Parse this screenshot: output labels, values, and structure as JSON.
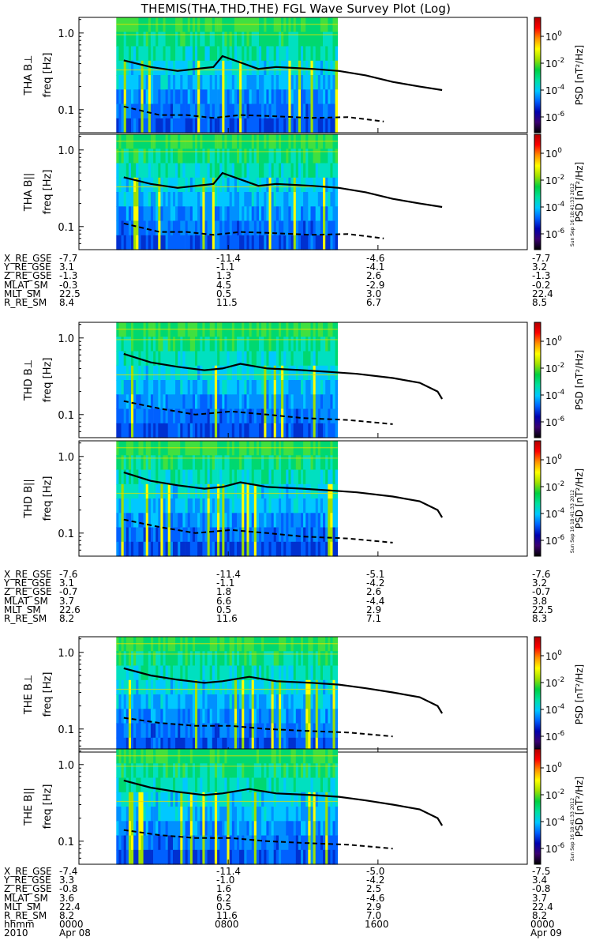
{
  "title": "THEMIS(THA,THD,THE) FGL Wave Survey Plot (Log)",
  "colors": {
    "colorbar": [
      "#000000",
      "#3a0070",
      "#0000b0",
      "#0060ff",
      "#00c8ff",
      "#00e0a0",
      "#00d040",
      "#9fe000",
      "#ffff00",
      "#ff9000",
      "#ff0000",
      "#b00000"
    ]
  },
  "common": {
    "ylabel_freq": "freq [Hz]",
    "colorbar_label": "PSD [nT²/Hz]",
    "yticks": [
      "1.0",
      "0.1"
    ],
    "cb_ticks": [
      {
        "base": "10",
        "exp": "0"
      },
      {
        "base": "10",
        "exp": "-2"
      },
      {
        "base": "10",
        "exp": "-4"
      },
      {
        "base": "10",
        "exp": "-6"
      }
    ],
    "stamp": "Sun Sep 16 18:41:33 2012"
  },
  "chart_data": [
    {
      "type": "heatmap",
      "probe": "THA",
      "component": "THA B⊥",
      "ylabel": "freq [Hz]",
      "ylim": [
        0.05,
        1.6
      ],
      "yscale": "log",
      "xlim": [
        "2010-04-08 00:00",
        "2010-04-09 00:00"
      ],
      "data_until": "2010-04-08 13:45",
      "colorbar": {
        "label": "PSD [nT²/Hz]",
        "range": [
          "1e-7",
          "1e1"
        ],
        "scale": "log"
      },
      "overlay_solid": [
        [
          0.1,
          0.44
        ],
        [
          0.16,
          0.36
        ],
        [
          0.22,
          0.32
        ],
        [
          0.3,
          0.36
        ],
        [
          0.32,
          0.5
        ],
        [
          0.4,
          0.34
        ],
        [
          0.44,
          0.36
        ],
        [
          0.52,
          0.34
        ],
        [
          0.58,
          0.32
        ],
        [
          0.64,
          0.28
        ],
        [
          0.7,
          0.23
        ],
        [
          0.76,
          0.2
        ],
        [
          0.81,
          0.18
        ]
      ],
      "overlay_dashed": [
        [
          0.1,
          0.11
        ],
        [
          0.18,
          0.085
        ],
        [
          0.24,
          0.085
        ],
        [
          0.3,
          0.078
        ],
        [
          0.36,
          0.085
        ],
        [
          0.44,
          0.082
        ],
        [
          0.52,
          0.078
        ],
        [
          0.6,
          0.08
        ],
        [
          0.68,
          0.07
        ]
      ]
    },
    {
      "type": "heatmap",
      "probe": "THA",
      "component": "THA B||",
      "ylabel": "freq [Hz]",
      "ylim": [
        0.05,
        1.6
      ],
      "yscale": "log",
      "xlim": [
        "2010-04-08 00:00",
        "2010-04-09 00:00"
      ],
      "data_until": "2010-04-08 13:45",
      "colorbar": {
        "label": "PSD [nT²/Hz]",
        "range": [
          "1e-7",
          "1e1"
        ],
        "scale": "log"
      },
      "overlay_solid": [
        [
          0.1,
          0.44
        ],
        [
          0.16,
          0.36
        ],
        [
          0.22,
          0.32
        ],
        [
          0.3,
          0.36
        ],
        [
          0.32,
          0.5
        ],
        [
          0.4,
          0.34
        ],
        [
          0.44,
          0.36
        ],
        [
          0.52,
          0.34
        ],
        [
          0.58,
          0.32
        ],
        [
          0.64,
          0.28
        ],
        [
          0.7,
          0.23
        ],
        [
          0.76,
          0.2
        ],
        [
          0.81,
          0.18
        ]
      ],
      "overlay_dashed": [
        [
          0.1,
          0.11
        ],
        [
          0.18,
          0.085
        ],
        [
          0.24,
          0.085
        ],
        [
          0.3,
          0.078
        ],
        [
          0.36,
          0.085
        ],
        [
          0.44,
          0.082
        ],
        [
          0.52,
          0.078
        ],
        [
          0.6,
          0.08
        ],
        [
          0.68,
          0.07
        ]
      ]
    },
    {
      "type": "heatmap",
      "probe": "THD",
      "component": "THD B⊥",
      "ylabel": "freq [Hz]",
      "ylim": [
        0.05,
        1.6
      ],
      "yscale": "log",
      "xlim": [
        "2010-04-08 00:00",
        "2010-04-09 00:00"
      ],
      "data_until": "2010-04-08 13:45",
      "colorbar": {
        "label": "PSD [nT²/Hz]",
        "range": [
          "1e-7",
          "1e1"
        ],
        "scale": "log"
      },
      "overlay_solid": [
        [
          0.1,
          0.62
        ],
        [
          0.16,
          0.48
        ],
        [
          0.22,
          0.42
        ],
        [
          0.28,
          0.38
        ],
        [
          0.32,
          0.4
        ],
        [
          0.36,
          0.46
        ],
        [
          0.42,
          0.4
        ],
        [
          0.5,
          0.38
        ],
        [
          0.56,
          0.36
        ],
        [
          0.62,
          0.34
        ],
        [
          0.7,
          0.3
        ],
        [
          0.76,
          0.26
        ],
        [
          0.8,
          0.2
        ],
        [
          0.81,
          0.16
        ]
      ],
      "overlay_dashed": [
        [
          0.1,
          0.15
        ],
        [
          0.18,
          0.12
        ],
        [
          0.26,
          0.1
        ],
        [
          0.34,
          0.11
        ],
        [
          0.42,
          0.1
        ],
        [
          0.5,
          0.09
        ],
        [
          0.6,
          0.085
        ],
        [
          0.7,
          0.075
        ]
      ]
    },
    {
      "type": "heatmap",
      "probe": "THD",
      "component": "THD B||",
      "ylabel": "freq [Hz]",
      "ylim": [
        0.05,
        1.6
      ],
      "yscale": "log",
      "xlim": [
        "2010-04-08 00:00",
        "2010-04-09 00:00"
      ],
      "data_until": "2010-04-08 13:45",
      "colorbar": {
        "label": "PSD [nT²/Hz]",
        "range": [
          "1e-7",
          "1e1"
        ],
        "scale": "log"
      },
      "overlay_solid": [
        [
          0.1,
          0.62
        ],
        [
          0.16,
          0.48
        ],
        [
          0.22,
          0.42
        ],
        [
          0.28,
          0.38
        ],
        [
          0.32,
          0.4
        ],
        [
          0.36,
          0.46
        ],
        [
          0.42,
          0.4
        ],
        [
          0.5,
          0.38
        ],
        [
          0.56,
          0.36
        ],
        [
          0.62,
          0.34
        ],
        [
          0.7,
          0.3
        ],
        [
          0.76,
          0.26
        ],
        [
          0.8,
          0.2
        ],
        [
          0.81,
          0.16
        ]
      ],
      "overlay_dashed": [
        [
          0.1,
          0.15
        ],
        [
          0.18,
          0.12
        ],
        [
          0.26,
          0.1
        ],
        [
          0.34,
          0.11
        ],
        [
          0.42,
          0.1
        ],
        [
          0.5,
          0.09
        ],
        [
          0.6,
          0.085
        ],
        [
          0.7,
          0.075
        ]
      ]
    },
    {
      "type": "heatmap",
      "probe": "THE",
      "component": "THE B⊥",
      "ylabel": "freq [Hz]",
      "ylim": [
        0.05,
        1.6
      ],
      "yscale": "log",
      "xlim": [
        "2010-04-08 00:00",
        "2010-04-09 00:00"
      ],
      "data_until": "2010-04-08 13:45",
      "colorbar": {
        "label": "PSD [nT²/Hz]",
        "range": [
          "1e-7",
          "1e1"
        ],
        "scale": "log"
      },
      "overlay_solid": [
        [
          0.1,
          0.62
        ],
        [
          0.16,
          0.5
        ],
        [
          0.22,
          0.44
        ],
        [
          0.28,
          0.4
        ],
        [
          0.32,
          0.42
        ],
        [
          0.38,
          0.48
        ],
        [
          0.44,
          0.42
        ],
        [
          0.52,
          0.4
        ],
        [
          0.58,
          0.38
        ],
        [
          0.64,
          0.34
        ],
        [
          0.7,
          0.3
        ],
        [
          0.76,
          0.26
        ],
        [
          0.8,
          0.2
        ],
        [
          0.81,
          0.16
        ]
      ],
      "overlay_dashed": [
        [
          0.1,
          0.14
        ],
        [
          0.18,
          0.12
        ],
        [
          0.26,
          0.11
        ],
        [
          0.34,
          0.11
        ],
        [
          0.42,
          0.1
        ],
        [
          0.5,
          0.095
        ],
        [
          0.6,
          0.09
        ],
        [
          0.7,
          0.08
        ]
      ]
    },
    {
      "type": "heatmap",
      "probe": "THE",
      "component": "THE B||",
      "ylabel": "freq [Hz]",
      "ylim": [
        0.05,
        1.6
      ],
      "yscale": "log",
      "xlim": [
        "2010-04-08 00:00",
        "2010-04-09 00:00"
      ],
      "data_until": "2010-04-08 13:45",
      "colorbar": {
        "label": "PSD [nT²/Hz]",
        "range": [
          "1e-7",
          "1e1"
        ],
        "scale": "log"
      },
      "overlay_solid": [
        [
          0.1,
          0.62
        ],
        [
          0.16,
          0.5
        ],
        [
          0.22,
          0.44
        ],
        [
          0.28,
          0.4
        ],
        [
          0.32,
          0.42
        ],
        [
          0.38,
          0.48
        ],
        [
          0.44,
          0.42
        ],
        [
          0.52,
          0.4
        ],
        [
          0.58,
          0.38
        ],
        [
          0.64,
          0.34
        ],
        [
          0.7,
          0.3
        ],
        [
          0.76,
          0.26
        ],
        [
          0.8,
          0.2
        ],
        [
          0.81,
          0.16
        ]
      ],
      "overlay_dashed": [
        [
          0.1,
          0.14
        ],
        [
          0.18,
          0.12
        ],
        [
          0.26,
          0.11
        ],
        [
          0.34,
          0.11
        ],
        [
          0.42,
          0.1
        ],
        [
          0.5,
          0.095
        ],
        [
          0.6,
          0.09
        ],
        [
          0.7,
          0.08
        ]
      ]
    }
  ],
  "ephemeris": [
    {
      "probe": "THA",
      "rows": [
        {
          "label": "X_RE_GSE",
          "v": [
            "-7.7",
            "-11.4",
            "-4.6",
            "-7.7"
          ]
        },
        {
          "label": "Y_RE_GSE",
          "v": [
            "3.1",
            "-1.1",
            "-4.1",
            "3.2"
          ]
        },
        {
          "label": "Z_RE_GSE",
          "v": [
            "-1.3",
            "1.3",
            "2.6",
            "-1.3"
          ]
        },
        {
          "label": "MLAT_SM",
          "v": [
            "-0.3",
            "4.5",
            "-2.9",
            "-0.2"
          ]
        },
        {
          "label": "MLT_SM",
          "v": [
            "22.5",
            "0.5",
            "3.0",
            "22.4"
          ]
        },
        {
          "label": "R_RE_SM",
          "v": [
            "8.4",
            "11.5",
            "6.7",
            "8.5"
          ]
        }
      ]
    },
    {
      "probe": "THD",
      "rows": [
        {
          "label": "X_RE_GSE",
          "v": [
            "-7.6",
            "-11.4",
            "-5.1",
            "-7.6"
          ]
        },
        {
          "label": "Y_RE_GSE",
          "v": [
            "3.1",
            "-1.1",
            "-4.2",
            "3.2"
          ]
        },
        {
          "label": "Z_RE_GSE",
          "v": [
            "-0.7",
            "1.8",
            "2.6",
            "-0.7"
          ]
        },
        {
          "label": "MLAT_SM",
          "v": [
            "3.7",
            "6.6",
            "-4.4",
            "3.8"
          ]
        },
        {
          "label": "MLT_SM",
          "v": [
            "22.6",
            "0.5",
            "2.9",
            "22.5"
          ]
        },
        {
          "label": "R_RE_SM",
          "v": [
            "8.2",
            "11.6",
            "7.1",
            "8.3"
          ]
        }
      ]
    },
    {
      "probe": "THE",
      "rows": [
        {
          "label": "X_RE_GSE",
          "v": [
            "-7.4",
            "-11.4",
            "-5.0",
            "-7.5"
          ]
        },
        {
          "label": "Y_RE_GSE",
          "v": [
            "3.3",
            "-1.0",
            "-4.2",
            "3.4"
          ]
        },
        {
          "label": "Z_RE_GSE",
          "v": [
            "-0.8",
            "1.6",
            "2.5",
            "-0.8"
          ]
        },
        {
          "label": "MLAT_SM",
          "v": [
            "3.6",
            "6.2",
            "-4.6",
            "3.7"
          ]
        },
        {
          "label": "MLT_SM",
          "v": [
            "22.4",
            "0.5",
            "2.9",
            "22.4"
          ]
        },
        {
          "label": "R_RE_SM",
          "v": [
            "8.2",
            "11.6",
            "7.0",
            "8.2"
          ]
        }
      ]
    }
  ],
  "time_axis": {
    "hhmm_label": "hhmm",
    "year_label": "2010",
    "hhmm": [
      "0000",
      "0800",
      "1600",
      "0000"
    ],
    "dates": [
      "Apr 08",
      "",
      "",
      "Apr 09"
    ]
  }
}
